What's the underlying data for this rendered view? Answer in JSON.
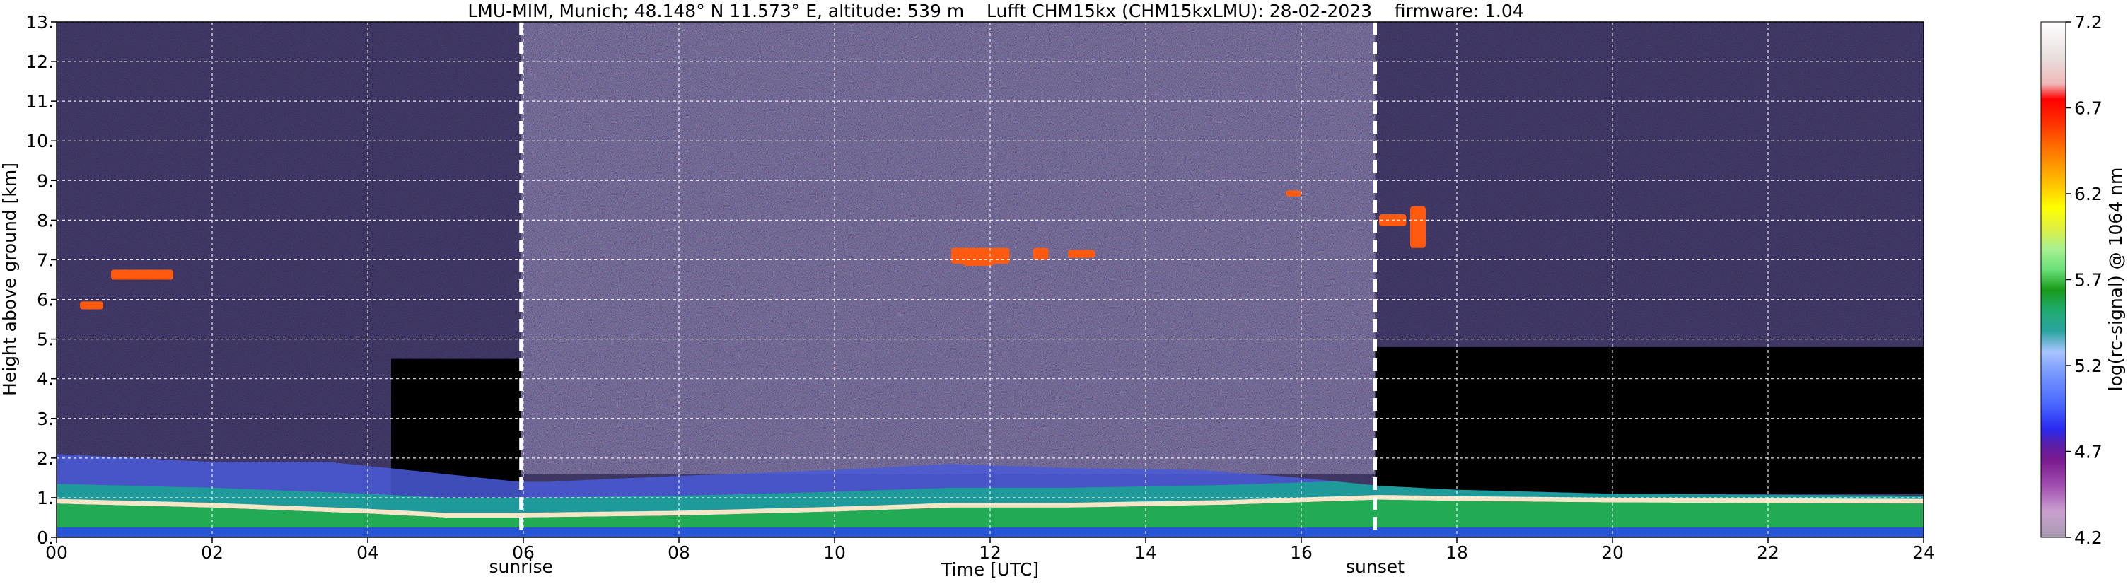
{
  "chart_data": {
    "type": "heatmap",
    "title": "LMU-MIM, Munich; 48.148° N 11.573° E, altitude: 539 m    Lufft CHM15kx (CHM15kxLMU): 28-02-2023    firmware: 1.04",
    "xlabel": "Time [UTC]",
    "ylabel": "Height above ground [km]",
    "xlim": [
      0,
      24
    ],
    "ylim": [
      0,
      13
    ],
    "x_ticks": [
      "00",
      "02",
      "04",
      "06",
      "08",
      "10",
      "12",
      "14",
      "16",
      "18",
      "20",
      "22",
      "24"
    ],
    "y_ticks": [
      "0.",
      "1.",
      "2.",
      "3.",
      "4.",
      "5.",
      "6.",
      "7.",
      "8.",
      "9.",
      "10.",
      "11.",
      "12.",
      "13."
    ],
    "grid": true,
    "markers": [
      {
        "label": "sunrise",
        "time": 5.97
      },
      {
        "label": "sunset",
        "time": 16.95
      }
    ],
    "colorbar": {
      "label": "log(rc-signal) @ 1064 nm",
      "range": [
        4.2,
        7.2
      ],
      "ticks": [
        "4.2",
        "4.7",
        "5.2",
        "5.7",
        "6.2",
        "6.7",
        "7.2"
      ]
    },
    "layers": {
      "boundary_layer_top": [
        [
          0,
          0.85
        ],
        [
          2,
          0.75
        ],
        [
          4,
          0.6
        ],
        [
          5,
          0.5
        ],
        [
          6,
          0.5
        ],
        [
          8,
          0.55
        ],
        [
          10,
          0.65
        ],
        [
          11.5,
          0.75
        ],
        [
          13,
          0.75
        ],
        [
          15,
          0.82
        ],
        [
          17,
          0.95
        ],
        [
          18,
          0.92
        ],
        [
          20,
          0.88
        ],
        [
          24,
          0.85
        ]
      ],
      "aerosol_top": [
        [
          0,
          2.1
        ],
        [
          2,
          1.9
        ],
        [
          3.5,
          1.9
        ],
        [
          4.5,
          1.7
        ],
        [
          5.95,
          1.4
        ],
        [
          6.3,
          1.4
        ],
        [
          8,
          1.55
        ],
        [
          10,
          1.7
        ],
        [
          11.5,
          1.85
        ],
        [
          13,
          1.75
        ],
        [
          14.7,
          1.7
        ],
        [
          16,
          1.5
        ],
        [
          17,
          1.3
        ],
        [
          18,
          1.2
        ],
        [
          20,
          1.1
        ],
        [
          24,
          1.05
        ]
      ],
      "clouds": [
        {
          "t_start": 11.5,
          "t_end": 12.25,
          "h_low": 6.9,
          "h_high": 7.3
        },
        {
          "t_start": 11.65,
          "t_end": 12.05,
          "h_low": 6.85,
          "h_high": 7.0
        },
        {
          "t_start": 12.55,
          "t_end": 12.75,
          "h_low": 7.0,
          "h_high": 7.3
        },
        {
          "t_start": 13.0,
          "t_end": 13.35,
          "h_low": 7.05,
          "h_high": 7.25
        },
        {
          "t_start": 15.8,
          "t_end": 16.0,
          "h_low": 8.6,
          "h_high": 8.75
        },
        {
          "t_start": 17.4,
          "t_end": 17.6,
          "h_low": 7.3,
          "h_high": 8.35
        },
        {
          "t_start": 17.0,
          "t_end": 17.35,
          "h_low": 7.85,
          "h_high": 8.15
        },
        {
          "t_start": 0.7,
          "t_end": 1.5,
          "h_low": 6.5,
          "h_high": 6.75
        },
        {
          "t_start": 0.3,
          "t_end": 0.6,
          "h_low": 5.75,
          "h_high": 5.95
        }
      ]
    }
  }
}
